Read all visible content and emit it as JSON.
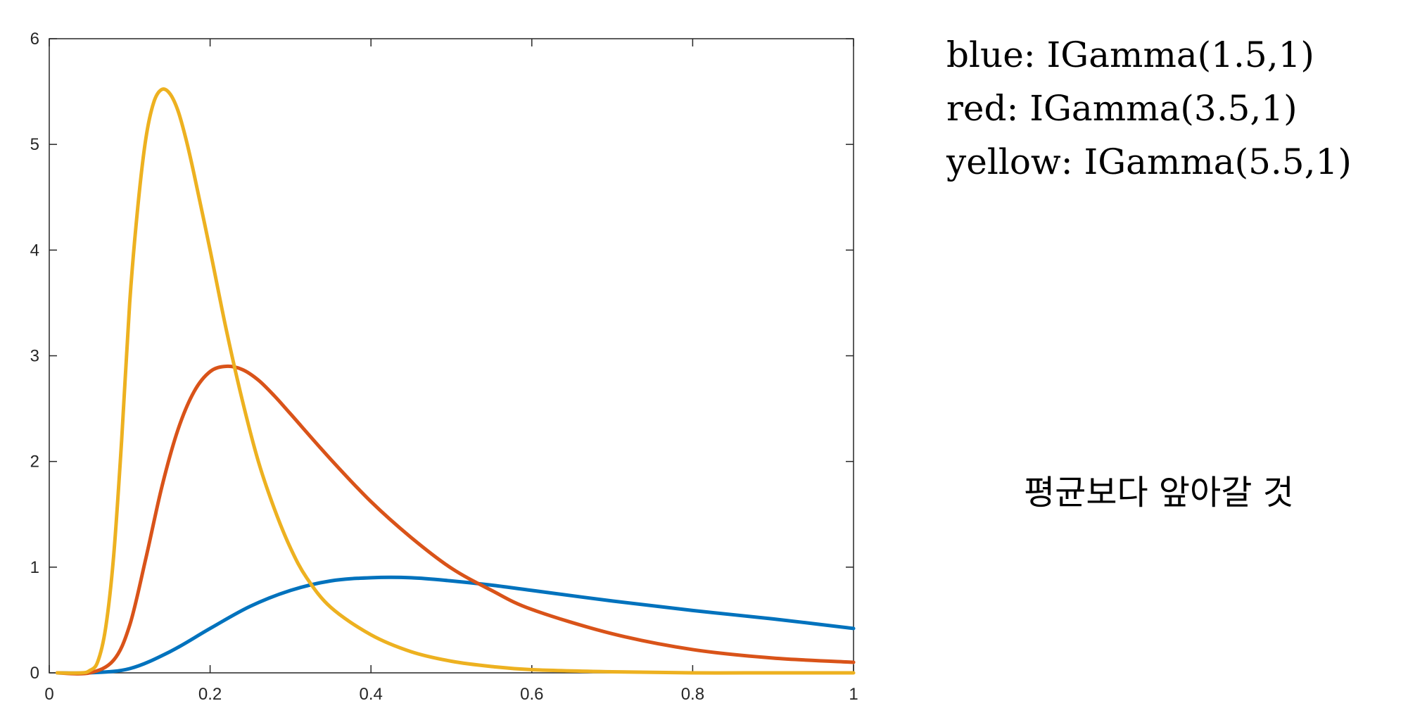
{
  "chart_data": {
    "type": "line",
    "title": "",
    "xlabel": "",
    "ylabel": "",
    "xlim": [
      0,
      1
    ],
    "ylim": [
      0,
      6
    ],
    "xticks": [
      0,
      0.2,
      0.4,
      0.6,
      0.8,
      1
    ],
    "xtick_labels": [
      "0",
      "0.2",
      "0.4",
      "0.6",
      "0.8",
      "1"
    ],
    "yticks": [
      0,
      1,
      2,
      3,
      4,
      5,
      6
    ],
    "ytick_labels": [
      "0",
      "1",
      "2",
      "3",
      "4",
      "5",
      "6"
    ],
    "grid": false,
    "series": [
      {
        "color": "#0072BD",
        "x": [
          0.01,
          0.05,
          0.1,
          0.15,
          0.2,
          0.25,
          0.3,
          0.35,
          0.4,
          0.45,
          0.5,
          0.55,
          0.6,
          0.7,
          0.8,
          0.9,
          1.0
        ],
        "y": [
          0,
          0,
          0.04,
          0.2,
          0.42,
          0.63,
          0.78,
          0.87,
          0.9,
          0.9,
          0.87,
          0.83,
          0.78,
          0.68,
          0.59,
          0.51,
          0.42
        ]
      },
      {
        "color": "#D95319",
        "x": [
          0.01,
          0.05,
          0.08,
          0.1,
          0.12,
          0.14,
          0.16,
          0.18,
          0.2,
          0.22,
          0.24,
          0.26,
          0.28,
          0.3,
          0.35,
          0.4,
          0.45,
          0.5,
          0.55,
          0.6,
          0.7,
          0.8,
          0.9,
          1.0
        ],
        "y": [
          0,
          0,
          0.12,
          0.45,
          1.08,
          1.76,
          2.3,
          2.66,
          2.85,
          2.9,
          2.87,
          2.77,
          2.62,
          2.45,
          2.02,
          1.62,
          1.28,
          0.99,
          0.78,
          0.6,
          0.37,
          0.22,
          0.14,
          0.1
        ]
      },
      {
        "color": "#EDB120",
        "x": [
          0.01,
          0.04,
          0.05,
          0.06,
          0.07,
          0.08,
          0.09,
          0.1,
          0.11,
          0.12,
          0.13,
          0.14,
          0.15,
          0.16,
          0.17,
          0.18,
          0.2,
          0.22,
          0.24,
          0.26,
          0.28,
          0.3,
          0.32,
          0.35,
          0.4,
          0.45,
          0.5,
          0.55,
          0.6,
          0.7,
          0.8,
          0.9,
          1.0
        ],
        "y": [
          0,
          0,
          0.02,
          0.1,
          0.42,
          1.1,
          2.2,
          3.5,
          4.4,
          5.05,
          5.4,
          5.52,
          5.48,
          5.32,
          5.05,
          4.72,
          4.0,
          3.25,
          2.58,
          2.0,
          1.55,
          1.18,
          0.9,
          0.62,
          0.36,
          0.2,
          0.11,
          0.06,
          0.03,
          0.01,
          0,
          0,
          0
        ]
      }
    ]
  },
  "legend_text": [
    "blue: IGamma(1.5,1)",
    "red: IGamma(3.5,1)",
    "yellow: IGamma(5.5,1)"
  ],
  "handwritten_note": "평균보다 앞아갈 것"
}
